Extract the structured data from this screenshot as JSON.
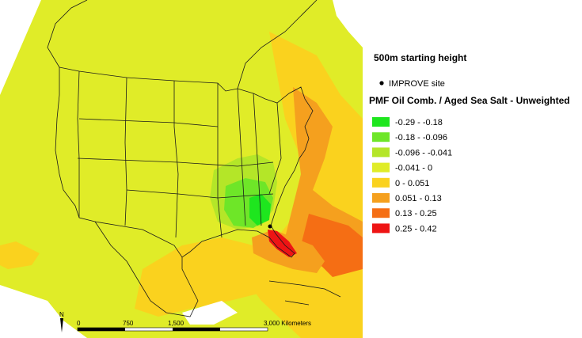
{
  "map": {
    "starting_height": "500m starting height",
    "site_legend_label": "IMPROVE site",
    "layer_title": "PMF Oil Comb. / Aged Sea Salt - Unweighted",
    "classes": [
      {
        "label": "-0.29 - -0.18",
        "color": "#1ee61e"
      },
      {
        "label": "-0.18 - -0.096",
        "color": "#6ee628"
      },
      {
        "label": "-0.096 - -0.041",
        "color": "#b4e628"
      },
      {
        "label": "-0.041 - 0",
        "color": "#e0ec28"
      },
      {
        "label": "0 - 0.051",
        "color": "#fad21e"
      },
      {
        "label": "0.051 - 0.13",
        "color": "#f5a01e"
      },
      {
        "label": "0.13 - 0.25",
        "color": "#f56e14"
      },
      {
        "label": "0.25 - 0.42",
        "color": "#ee1414"
      }
    ],
    "scale_bar": {
      "ticks": [
        "0",
        "750",
        "1,500",
        "3,000 Kilometers"
      ]
    },
    "north_arrow_label": "N",
    "site_marker": "IMPROVE site"
  }
}
